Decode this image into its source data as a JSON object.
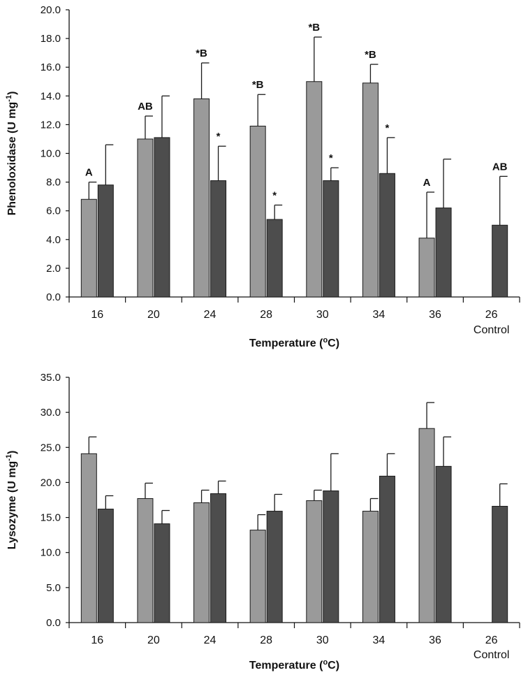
{
  "colors": {
    "series1": "#9a9a9a",
    "series2": "#4d4d4d",
    "axis": "#111111"
  },
  "chart_data": [
    {
      "type": "bar",
      "categories": [
        "16",
        "20",
        "24",
        "28",
        "30",
        "34",
        "36",
        "26"
      ],
      "category_sublabels": [
        "",
        "",
        "",
        "",
        "",
        "",
        "",
        "Control"
      ],
      "xlabel": "Temperature (",
      "xlabel_sup": "o",
      "xlabel_end": "C)",
      "ylabel": "Phenoloxidase (U mg",
      "ylabel_sup": "-1",
      "ylabel_end": ")",
      "ylim": [
        0,
        20
      ],
      "yticks": [
        "0.0",
        "2.0",
        "4.0",
        "6.0",
        "8.0",
        "10.0",
        "12.0",
        "14.0",
        "16.0",
        "18.0",
        "20.0"
      ],
      "series": [
        {
          "values": [
            6.8,
            11.0,
            13.8,
            11.9,
            15.0,
            14.9,
            4.1,
            null
          ],
          "errors": [
            1.2,
            1.6,
            2.5,
            2.2,
            3.1,
            1.3,
            3.2,
            null
          ],
          "labels": [
            "A",
            "AB",
            "*B",
            "*B",
            "*B",
            "*B",
            "A",
            ""
          ]
        },
        {
          "values": [
            7.8,
            11.1,
            8.1,
            5.4,
            8.1,
            8.6,
            6.2,
            5.0
          ],
          "errors": [
            2.8,
            2.9,
            2.4,
            1.0,
            0.9,
            2.5,
            3.4,
            3.4
          ],
          "labels": [
            "",
            "",
            "*",
            "*",
            "*",
            "*",
            "",
            "AB"
          ]
        }
      ]
    },
    {
      "type": "bar",
      "categories": [
        "16",
        "20",
        "24",
        "28",
        "30",
        "34",
        "36",
        "26"
      ],
      "category_sublabels": [
        "",
        "",
        "",
        "",
        "",
        "",
        "",
        "Control"
      ],
      "xlabel": "Temperature (",
      "xlabel_sup": "o",
      "xlabel_end": "C)",
      "ylabel": "Lysozyme (U mg",
      "ylabel_sup": "-1",
      "ylabel_end": ")",
      "ylim": [
        0,
        35
      ],
      "yticks": [
        "0.0",
        "5.0",
        "10.0",
        "15.0",
        "20.0",
        "25.0",
        "30.0",
        "35.0"
      ],
      "series": [
        {
          "values": [
            24.1,
            17.7,
            17.1,
            13.2,
            17.4,
            15.9,
            27.7,
            null
          ],
          "errors": [
            2.4,
            2.2,
            1.8,
            2.2,
            1.5,
            1.8,
            3.7,
            null
          ],
          "labels": [
            "",
            "",
            "",
            "",
            "",
            "",
            "",
            ""
          ]
        },
        {
          "values": [
            16.2,
            14.1,
            18.4,
            15.9,
            18.8,
            20.9,
            22.3,
            16.6
          ],
          "errors": [
            1.9,
            1.9,
            1.8,
            2.4,
            5.3,
            3.2,
            4.2,
            3.2
          ],
          "labels": [
            "",
            "",
            "",
            "",
            "",
            "",
            "",
            ""
          ]
        }
      ]
    }
  ]
}
